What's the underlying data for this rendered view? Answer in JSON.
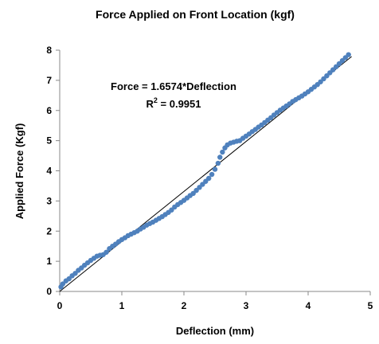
{
  "chart_data": {
    "type": "scatter",
    "title": "Force Applied on Front Location (kgf)",
    "xlabel": "Deflection (mm)",
    "ylabel": "Applied Force (Kgf)",
    "xlim": [
      0,
      5
    ],
    "ylim": [
      0,
      8
    ],
    "x_ticks": [
      "0",
      "1",
      "2",
      "3",
      "4",
      "5"
    ],
    "y_ticks": [
      "0",
      "1",
      "2",
      "3",
      "4",
      "5",
      "6",
      "7",
      "8"
    ],
    "grid": false,
    "legend": "none",
    "marker_color": "#4F81BD",
    "trendline_color": "#000000",
    "trendline": {
      "slope": 1.6574,
      "intercept": 0,
      "x_range": [
        0,
        4.7
      ]
    },
    "annotation": {
      "equation": "Force = 1.6574*Deflection",
      "r2_prefix": "R",
      "r2_sup": "2",
      "r2_suffix": " = 0.9951"
    },
    "series": [
      {
        "values": [
          [
            0.02,
            0.15
          ],
          [
            0.05,
            0.25
          ],
          [
            0.1,
            0.35
          ],
          [
            0.15,
            0.42
          ],
          [
            0.2,
            0.52
          ],
          [
            0.25,
            0.6
          ],
          [
            0.3,
            0.7
          ],
          [
            0.35,
            0.78
          ],
          [
            0.4,
            0.87
          ],
          [
            0.45,
            0.95
          ],
          [
            0.5,
            1.03
          ],
          [
            0.55,
            1.1
          ],
          [
            0.6,
            1.17
          ],
          [
            0.65,
            1.2
          ],
          [
            0.7,
            1.22
          ],
          [
            0.75,
            1.3
          ],
          [
            0.8,
            1.42
          ],
          [
            0.85,
            1.5
          ],
          [
            0.9,
            1.57
          ],
          [
            0.95,
            1.65
          ],
          [
            1.0,
            1.72
          ],
          [
            1.05,
            1.78
          ],
          [
            1.1,
            1.85
          ],
          [
            1.15,
            1.9
          ],
          [
            1.2,
            1.95
          ],
          [
            1.25,
            2.0
          ],
          [
            1.3,
            2.07
          ],
          [
            1.35,
            2.13
          ],
          [
            1.4,
            2.2
          ],
          [
            1.45,
            2.25
          ],
          [
            1.5,
            2.3
          ],
          [
            1.55,
            2.36
          ],
          [
            1.6,
            2.42
          ],
          [
            1.65,
            2.48
          ],
          [
            1.7,
            2.55
          ],
          [
            1.75,
            2.62
          ],
          [
            1.8,
            2.7
          ],
          [
            1.85,
            2.8
          ],
          [
            1.9,
            2.88
          ],
          [
            1.95,
            2.95
          ],
          [
            2.0,
            3.02
          ],
          [
            2.05,
            3.1
          ],
          [
            2.1,
            3.18
          ],
          [
            2.15,
            3.25
          ],
          [
            2.2,
            3.35
          ],
          [
            2.25,
            3.45
          ],
          [
            2.3,
            3.55
          ],
          [
            2.35,
            3.65
          ],
          [
            2.4,
            3.75
          ],
          [
            2.45,
            3.88
          ],
          [
            2.5,
            4.05
          ],
          [
            2.55,
            4.25
          ],
          [
            2.58,
            4.45
          ],
          [
            2.62,
            4.62
          ],
          [
            2.66,
            4.76
          ],
          [
            2.7,
            4.86
          ],
          [
            2.75,
            4.92
          ],
          [
            2.8,
            4.95
          ],
          [
            2.85,
            4.98
          ],
          [
            2.9,
            5.0
          ],
          [
            2.95,
            5.08
          ],
          [
            3.0,
            5.15
          ],
          [
            3.05,
            5.22
          ],
          [
            3.1,
            5.3
          ],
          [
            3.15,
            5.37
          ],
          [
            3.2,
            5.45
          ],
          [
            3.25,
            5.52
          ],
          [
            3.3,
            5.6
          ],
          [
            3.35,
            5.68
          ],
          [
            3.4,
            5.76
          ],
          [
            3.45,
            5.85
          ],
          [
            3.5,
            5.93
          ],
          [
            3.55,
            6.01
          ],
          [
            3.6,
            6.08
          ],
          [
            3.65,
            6.15
          ],
          [
            3.7,
            6.22
          ],
          [
            3.75,
            6.3
          ],
          [
            3.8,
            6.36
          ],
          [
            3.85,
            6.42
          ],
          [
            3.9,
            6.48
          ],
          [
            3.95,
            6.55
          ],
          [
            4.0,
            6.62
          ],
          [
            4.05,
            6.7
          ],
          [
            4.1,
            6.78
          ],
          [
            4.15,
            6.86
          ],
          [
            4.2,
            6.95
          ],
          [
            4.25,
            7.05
          ],
          [
            4.3,
            7.15
          ],
          [
            4.35,
            7.25
          ],
          [
            4.4,
            7.35
          ],
          [
            4.45,
            7.45
          ],
          [
            4.5,
            7.55
          ],
          [
            4.55,
            7.65
          ],
          [
            4.6,
            7.75
          ],
          [
            4.65,
            7.85
          ]
        ]
      }
    ]
  }
}
